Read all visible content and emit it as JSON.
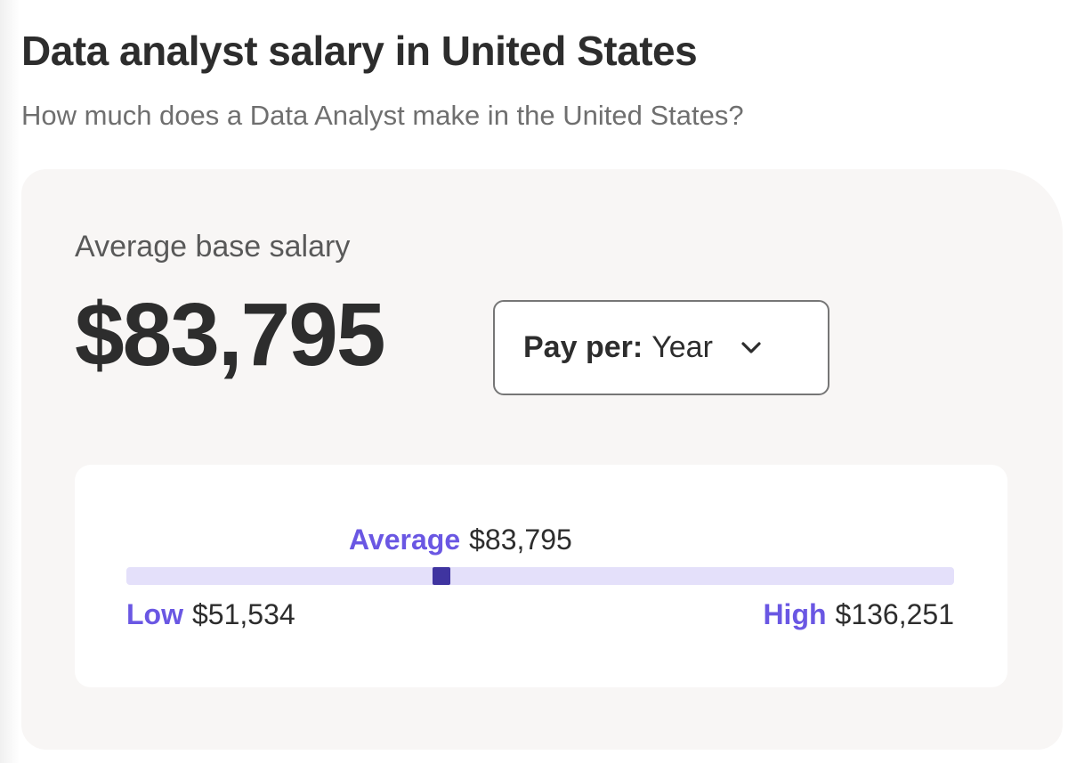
{
  "header": {
    "title": "Data analyst salary in United States",
    "subtitle": "How much does a Data Analyst make in the United States?"
  },
  "salary": {
    "average_label": "Average base salary",
    "average_value": "$83,795",
    "pay_per_label": "Pay per:",
    "pay_per_value": "Year",
    "pay_per_icon": "chevron-down-icon"
  },
  "range": {
    "average_label": "Average",
    "average_value": "$83,795",
    "low_label": "Low",
    "low_value": "$51,534",
    "high_label": "High",
    "high_value": "$136,251",
    "low_amount": 51534,
    "average_amount": 83795,
    "high_amount": 136251
  },
  "colors": {
    "accent": "#6a57e3",
    "track": "#e4e0fa",
    "marker": "#3f34a0",
    "card_background": "#f8f6f5"
  }
}
